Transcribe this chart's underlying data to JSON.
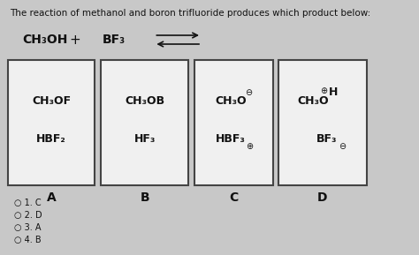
{
  "title": "The reaction of methanol and boron trifluoride produces which product below:",
  "title_fontsize": 7.5,
  "reactant1": "CH₃OH",
  "reactant2": "BF₃",
  "bg_color": "#c8c8c8",
  "box_color": "#f0f0f0",
  "box_edge_color": "#444444",
  "boxes": [
    {
      "label": "A",
      "line1": "CH₃OF",
      "line2": "HBF₂",
      "type": "simple"
    },
    {
      "label": "B",
      "line1": "CH₃OB",
      "line2": "HF₃",
      "type": "simple"
    },
    {
      "label": "C",
      "line1": "CH₃O",
      "line1_sup": "⊖",
      "line2": "HBF₃",
      "line2_sub": "⊕",
      "type": "charged_c"
    },
    {
      "label": "D",
      "line1a": "CH₃O",
      "line1b_sup": "⊕",
      "line1c": "H",
      "line2a": "BF₃",
      "line2b_sub": "⊖",
      "type": "charged_d"
    }
  ],
  "answers": [
    "1. C",
    "2. D",
    "3. A",
    "4. B"
  ],
  "text_color": "#111111",
  "answer_circle": "○"
}
